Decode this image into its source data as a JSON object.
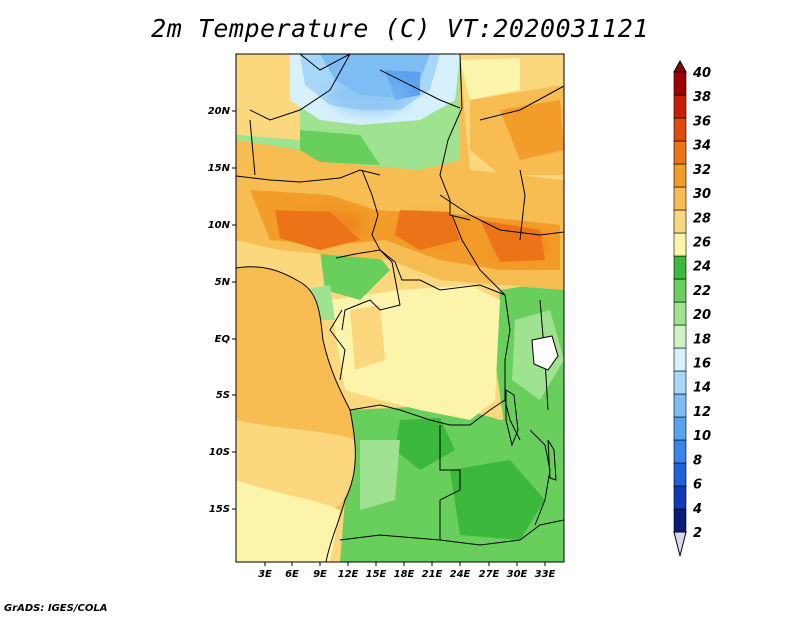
{
  "title": "2m Temperature (C) VT:2020031121",
  "footer": "GrADS: IGES/COLA",
  "axes": {
    "lat_labels": [
      "20N",
      "15N",
      "10N",
      "5N",
      "EQ",
      "5S",
      "10S",
      "15S"
    ],
    "lon_labels": [
      "3E",
      "6E",
      "9E",
      "12E",
      "15E",
      "18E",
      "21E",
      "24E",
      "27E",
      "30E",
      "33E"
    ]
  },
  "colorbar": {
    "levels": [
      "2",
      "4",
      "6",
      "8",
      "10",
      "12",
      "14",
      "16",
      "18",
      "20",
      "22",
      "24",
      "26",
      "28",
      "30",
      "32",
      "34",
      "36",
      "38",
      "40"
    ],
    "colors": [
      "#0c1a78",
      "#1438b8",
      "#2060d8",
      "#3a84e8",
      "#5aa2ee",
      "#7ebcf4",
      "#a6d6f8",
      "#d6f1fc",
      "#cdf2c4",
      "#9fe290",
      "#68cf5c",
      "#3cb83c",
      "#fdf4ac",
      "#fbd77e",
      "#f7bd52",
      "#f29c2a",
      "#ec7418",
      "#df4a10",
      "#c82008",
      "#9c0404"
    ],
    "under_color": "#dcd8f4",
    "over_color": "#8b0000"
  }
}
